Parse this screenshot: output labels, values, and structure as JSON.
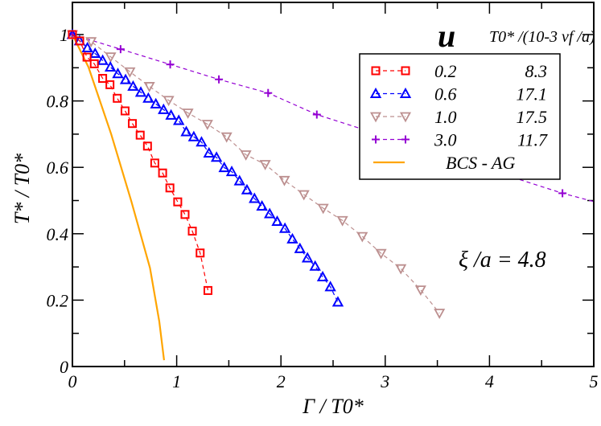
{
  "chart_data": {
    "type": "line",
    "xlabel": "Γ / T0*",
    "ylabel": "T* / T0*",
    "xlim": [
      0,
      5
    ],
    "ylim": [
      0,
      1.1
    ],
    "x_ticks": [
      "0",
      "1",
      "2",
      "3",
      "4",
      "5"
    ],
    "y_ticks": [
      "0",
      "0.2",
      "0.4",
      "0.6",
      "0.8",
      "1"
    ],
    "grid": false,
    "legend_placement": "top-right",
    "legend_header": {
      "u": "u",
      "t0": "T0* /(10-3 vf /a)"
    },
    "annotation": "ξ /a = 4.8",
    "series": [
      {
        "name": "0.2",
        "t0": "8.3",
        "color": "#ff0000",
        "marker": "square",
        "dashed": true,
        "x": [
          0,
          0.07,
          0.14,
          0.21,
          0.29,
          0.36,
          0.43,
          0.505,
          0.575,
          0.65,
          0.72,
          0.79,
          0.865,
          0.935,
          1.01,
          1.08,
          1.15,
          1.225,
          1.3
        ],
        "y": [
          1.0,
          0.981,
          0.932,
          0.912,
          0.868,
          0.849,
          0.808,
          0.77,
          0.732,
          0.697,
          0.664,
          0.613,
          0.583,
          0.538,
          0.496,
          0.458,
          0.408,
          0.342,
          0.229
        ]
      },
      {
        "name": "0.6",
        "t0": "17.1",
        "color": "#0000ff",
        "marker": "triangle-up",
        "dashed": true,
        "x": [
          0,
          0.069,
          0.144,
          0.218,
          0.29,
          0.364,
          0.436,
          0.51,
          0.582,
          0.656,
          0.728,
          0.8,
          0.874,
          0.946,
          1.02,
          1.092,
          1.164,
          1.238,
          1.31,
          1.382,
          1.456,
          1.528,
          1.603,
          1.674,
          1.746,
          1.818,
          1.892,
          1.964,
          2.038,
          2.11,
          2.182,
          2.254,
          2.328,
          2.4,
          2.474,
          2.546
        ],
        "y": [
          1.0,
          0.981,
          0.96,
          0.943,
          0.922,
          0.902,
          0.882,
          0.864,
          0.844,
          0.826,
          0.808,
          0.791,
          0.774,
          0.757,
          0.741,
          0.707,
          0.692,
          0.676,
          0.643,
          0.63,
          0.599,
          0.587,
          0.559,
          0.532,
          0.506,
          0.483,
          0.46,
          0.437,
          0.416,
          0.384,
          0.355,
          0.327,
          0.302,
          0.27,
          0.24,
          0.194
        ]
      },
      {
        "name": "1.0",
        "t0": "17.5",
        "color": "#bc8f8f",
        "marker": "triangle-down",
        "dashed": true,
        "x": [
          0,
          0.179,
          0.367,
          0.551,
          0.738,
          0.923,
          1.108,
          1.295,
          1.479,
          1.664,
          1.849,
          2.033,
          2.22,
          2.405,
          2.59,
          2.78,
          2.96,
          3.15,
          3.34,
          3.52
        ],
        "y": [
          1.0,
          0.979,
          0.933,
          0.888,
          0.844,
          0.802,
          0.764,
          0.73,
          0.692,
          0.638,
          0.609,
          0.561,
          0.518,
          0.477,
          0.44,
          0.392,
          0.341,
          0.295,
          0.231,
          0.161
        ]
      },
      {
        "name": "3.0",
        "t0": "11.7",
        "color": "#9400d3",
        "marker": "plus",
        "dashed": true,
        "x": [
          0,
          0.462,
          0.938,
          1.405,
          1.877,
          2.344,
          4.7
        ],
        "y": [
          1.0,
          0.956,
          0.91,
          0.865,
          0.824,
          0.759,
          0.522
        ],
        "line_extends_to": [
          5.0,
          0.497
        ]
      },
      {
        "name": "BCS - AG",
        "t0": "",
        "color": "#ffa500",
        "marker": "none",
        "dashed": false,
        "x": [
          0,
          0.154,
          0.372,
          0.564,
          0.744,
          0.833,
          0.879
        ],
        "y": [
          1.0,
          0.902,
          0.7,
          0.499,
          0.297,
          0.136,
          0.019
        ]
      }
    ]
  }
}
